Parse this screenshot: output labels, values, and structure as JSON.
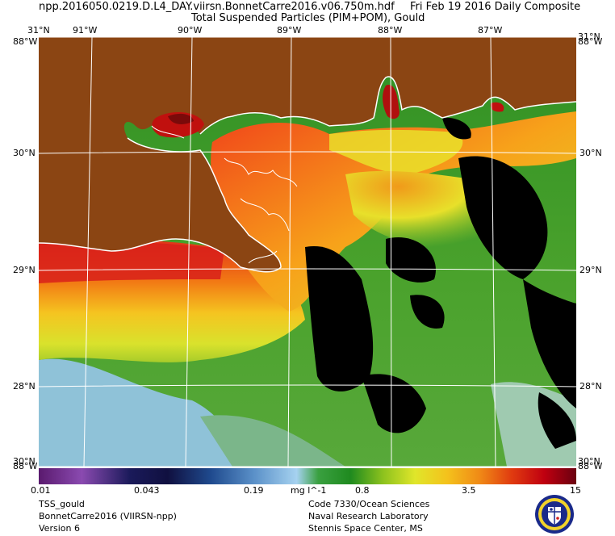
{
  "header": {
    "line1_left": "npp.2016050.0219.D.L4_DAY.viirsn.BonnetCarre2016.v06.750m.hdf",
    "line1_right": "Fri Feb 19 2016 Daily Composite",
    "line2": "Total Suspended Particles (PIM+POM), Gould"
  },
  "map": {
    "lon_labels": [
      "91°W",
      "90°W",
      "89°W",
      "88°W",
      "87°W"
    ],
    "lat_labels": [
      "30°N",
      "29°N",
      "28°N"
    ],
    "corner_top": "31°N",
    "corner_top_left_overlap": "88°W",
    "corner_top_right": "31°N",
    "corner_top_right_overlap": "88°W",
    "corner_bottom": "30°N",
    "corner_bottom_overlap": "88°W",
    "corner_bottom_right": "30°N",
    "corner_bottom_right_overlap": "88°W",
    "land_color": "#8b4513",
    "grid_color": "#ffffff",
    "coast_color": "#ffffff"
  },
  "colorbar": {
    "tick_labels": [
      "0.01",
      "0.043",
      "0.19",
      "0.8",
      "3.5",
      "15"
    ],
    "units": "mg l^-1",
    "stops": [
      "#5a1a6e",
      "#7b3fa6",
      "#3b2a8c",
      "#101060",
      "#1a3d8a",
      "#4f86c6",
      "#9ac7ef",
      "#46a848",
      "#1f8a1f",
      "#8ac21e",
      "#d8e42a",
      "#f0c020",
      "#f08a16",
      "#e03b10",
      "#c00010",
      "#7a0010"
    ]
  },
  "footer": {
    "left": [
      "TSS_gould",
      "BonnetCarre2016 (VIIRSN-npp)",
      "Version 6"
    ],
    "right": [
      "Code 7330/Ocean Sciences",
      "Naval Research Laboratory",
      "Stennis Space Center, MS"
    ]
  },
  "logo": {
    "name": "nrl-seal"
  }
}
